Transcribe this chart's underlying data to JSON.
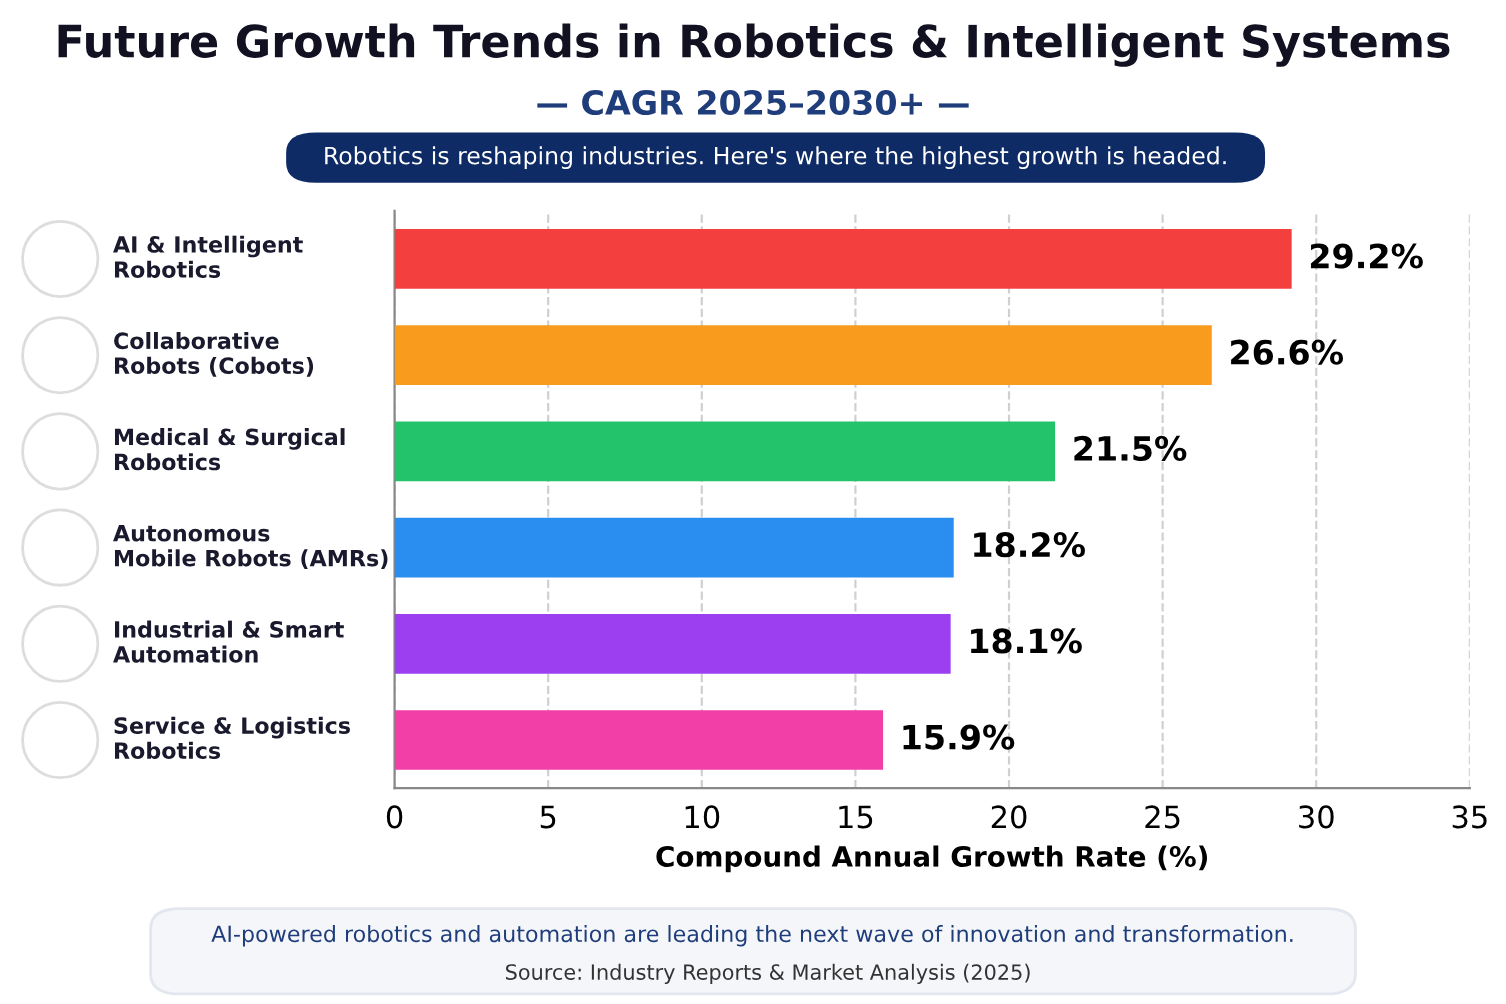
{
  "chart_data": {
    "type": "bar",
    "orientation": "horizontal",
    "title": "Future Growth Trends in Robotics & Intelligent Systems",
    "subtitle": "— CAGR 2025–2030+ —",
    "categories": [
      "AI & Intelligent\nRobotics",
      "Collaborative\nRobots (Cobots)",
      "Medical & Surgical\nRobotics",
      "Autonomous\nMobile Robots (AMRs)",
      "Industrial & Smart\nAutomation",
      "Service & Logistics\nRobotics"
    ],
    "values": [
      29.2,
      26.6,
      21.5,
      18.2,
      18.1,
      15.9
    ],
    "colors": [
      "#f43f3f",
      "#f99b1c",
      "#22c36a",
      "#2a8ef0",
      "#9b3ff0",
      "#f23fa8"
    ],
    "value_labels": [
      "29.2%",
      "26.6%",
      "21.5%",
      "18.2%",
      "18.1%",
      "15.9%"
    ],
    "xlabel": "Compound Annual Growth Rate (%)",
    "xlim": [
      0,
      35
    ],
    "xticks": [
      0,
      5,
      10,
      15,
      20,
      25,
      30,
      35
    ],
    "grid": "x",
    "annotations": [
      "Robotics is reshaping industries. Here's where the highest growth is headed.",
      "AI-powered robotics and automation are leading the next wave of innovation and transformation.",
      "Source: Industry Reports & Market Analysis (2025)"
    ]
  }
}
